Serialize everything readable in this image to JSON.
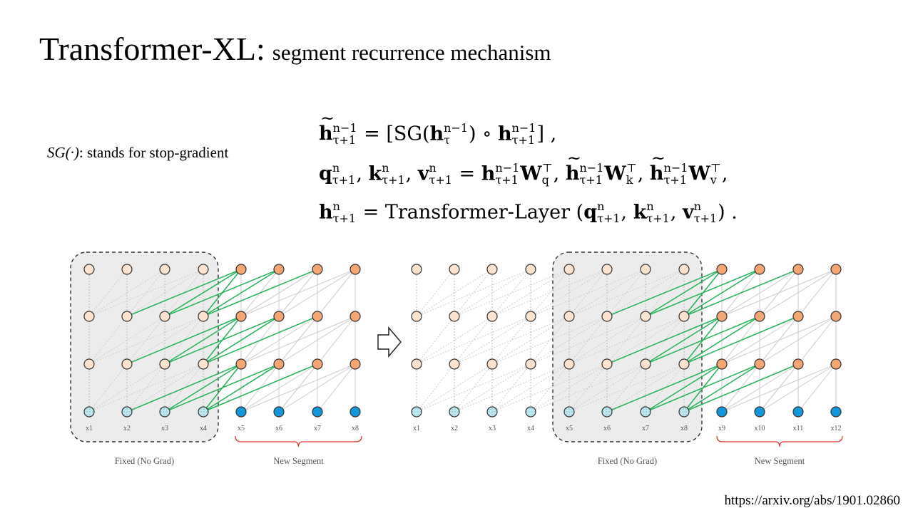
{
  "slide": {
    "title_main": "Transformer-XL:",
    "title_sub": "segment recurrence mechanism",
    "sg_symbol": "SG(·)",
    "sg_text": ": stands for stop-gradient",
    "url": "https://arxiv.org/abs/1901.02860"
  },
  "equations": [
    "h̃^{n−1}_{τ+1} = [SG(h^{n−1}_τ) ∘ h^{n−1}_{τ+1}],",
    "q^n_{τ+1}, k^n_{τ+1}, v^n_{τ+1} = h^{n−1}_{τ+1} W_q^⊤, h̃^{n−1}_{τ+1} W_k^⊤, h̃^{n−1}_{τ+1} W_v^⊤,",
    "h^n_{τ+1} = Transformer-Layer (q^n_{τ+1}, k^n_{τ+1}, v^n_{τ+1})."
  ],
  "eq_text": {
    "sg": "SG",
    "transformer_layer": "Transformer-Layer"
  },
  "left_diagram": {
    "tokens": [
      "x1",
      "x2",
      "x3",
      "x4",
      "x5",
      "x6",
      "x7",
      "x8"
    ],
    "fixed_label": "Fixed (No Grad)",
    "new_label": "New Segment"
  },
  "right_diagram": {
    "tokens": [
      "x1",
      "x2",
      "x3",
      "x4",
      "x5",
      "x6",
      "x7",
      "x8",
      "x9",
      "x10",
      "x11",
      "x12"
    ],
    "fixed_label": "Fixed (No Grad)",
    "new_label": "New Segment"
  },
  "colors": {
    "node_old_fill": "#fbe3cf",
    "node_new_fill": "#f4a774",
    "input_old_fill": "#bfe7f0",
    "input_new_fill": "#1497d8",
    "attention_edge": "#27b35a",
    "faint_edge": "#cccccc",
    "fixed_box_fill": "#ececec",
    "brace": "#d9342b"
  }
}
